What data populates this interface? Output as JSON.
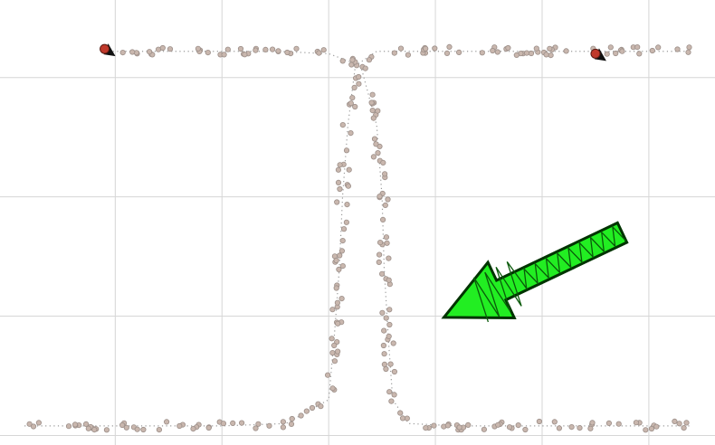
{
  "chart_data": {
    "type": "scatter",
    "title": "",
    "xlabel": "",
    "ylabel": "",
    "xlim": [
      -1.08,
      5.62
    ],
    "ylim": [
      -0.08,
      3.65
    ],
    "grid": true,
    "xgrid": [
      0,
      1,
      2,
      3,
      4,
      5
    ],
    "ygrid": [
      0,
      1,
      2,
      3
    ],
    "legend": "none",
    "colors": {
      "grid": "#d6d6d6",
      "guide": "#9a9a9a",
      "point_fill": "#c9b7ae",
      "point_stroke": "#9c8f89",
      "endpoint": "#c0392b",
      "arrow_fill": "#22ee22",
      "arrow_stroke": "#003300"
    },
    "guide_curves": [
      {
        "x": [
          -0.85,
          1.0,
          1.6,
          2.0,
          2.05,
          2.1,
          2.13,
          2.18,
          2.25,
          2.45,
          3.0,
          4.0,
          5.4
        ],
        "y": [
          0.08,
          0.08,
          0.1,
          0.3,
          0.8,
          1.4,
          2.0,
          2.6,
          3.1,
          3.22,
          3.22,
          3.22,
          3.22
        ]
      },
      {
        "x": [
          -0.1,
          1.5,
          2.0,
          2.3,
          2.45,
          2.5,
          2.52,
          2.56,
          2.6,
          2.75,
          3.2,
          4.3,
          5.4
        ],
        "y": [
          3.22,
          3.22,
          3.2,
          3.1,
          2.6,
          2.0,
          1.4,
          0.8,
          0.3,
          0.1,
          0.08,
          0.08,
          0.08
        ]
      }
    ],
    "endpoints": [
      {
        "x": -0.1,
        "y": 3.24
      },
      {
        "x": 4.5,
        "y": 3.2
      }
    ],
    "annotations": [
      {
        "type": "arrow",
        "points_toward": "lower-left",
        "from": [
          4.75,
          1.7
        ],
        "to": [
          3.08,
          0.99
        ]
      }
    ]
  }
}
